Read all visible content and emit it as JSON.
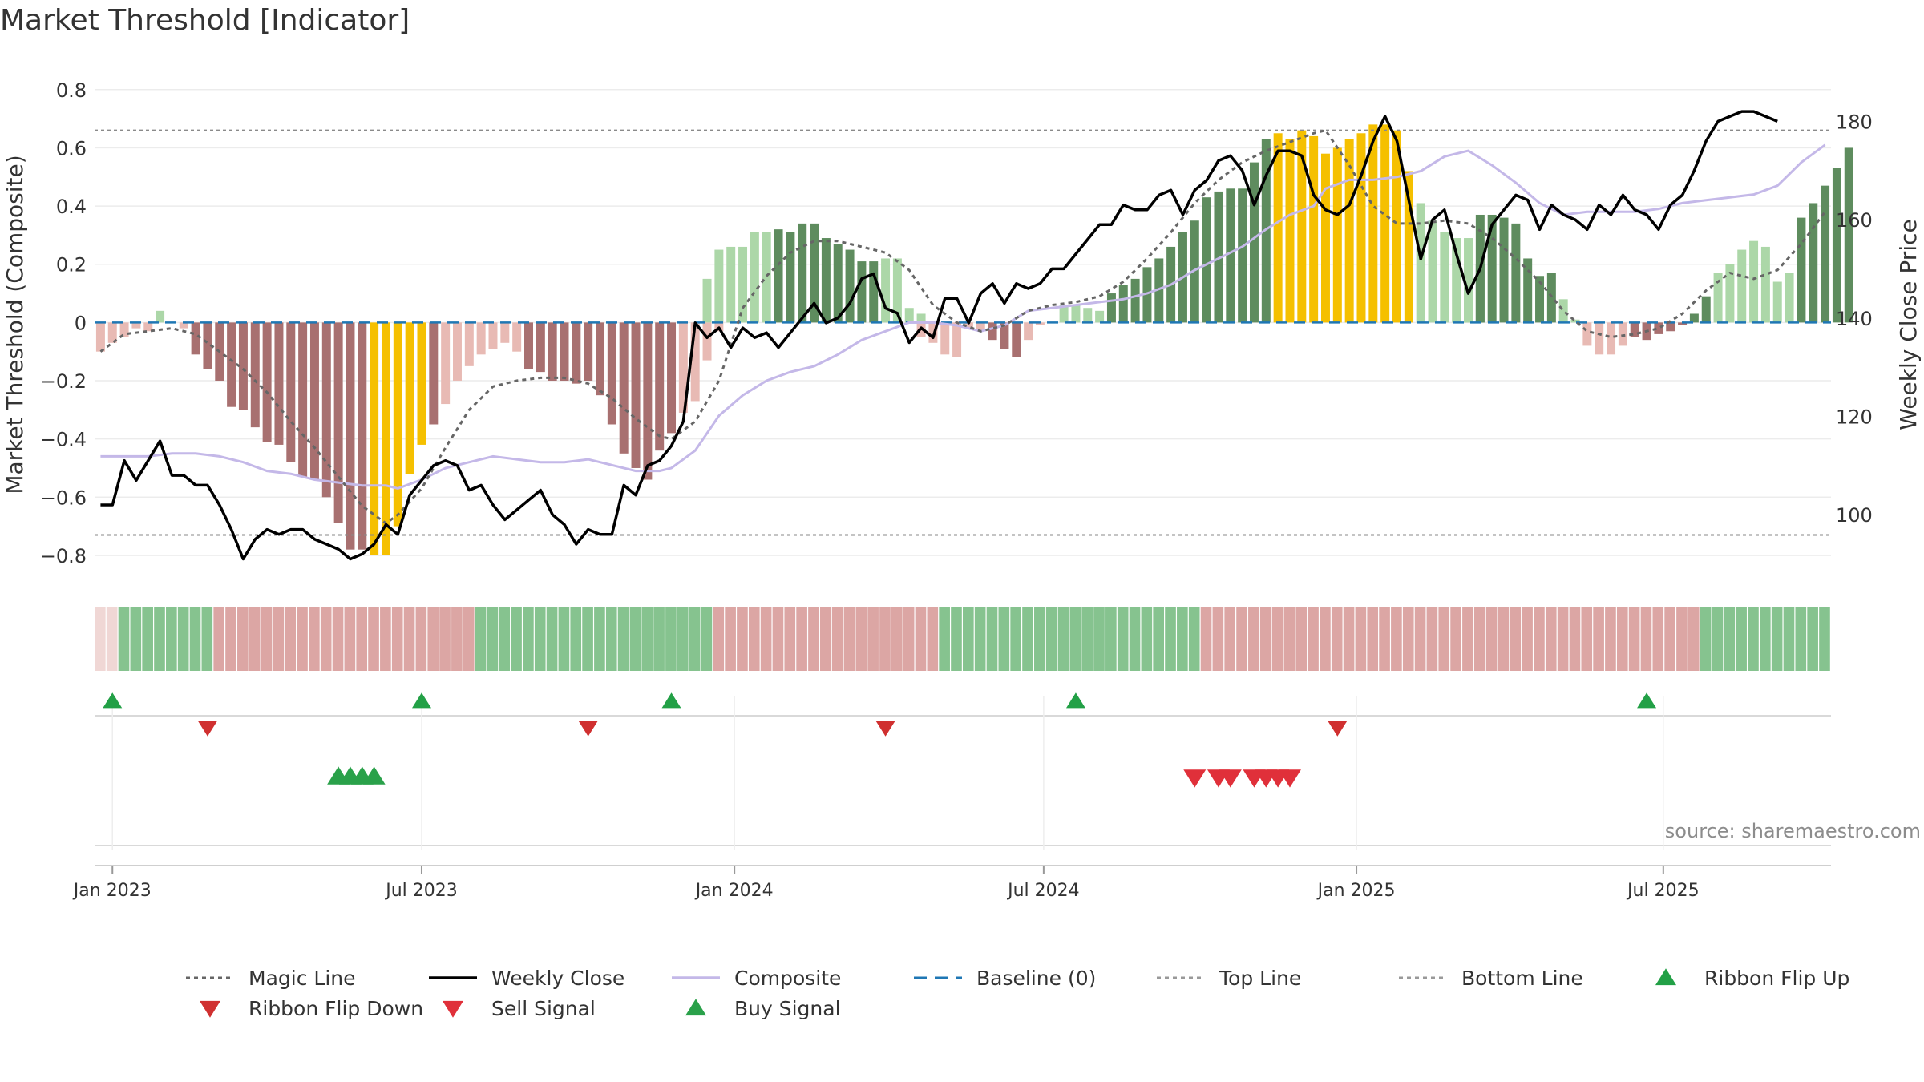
{
  "chart_data": {
    "type": "bar",
    "title": "Market Threshold [Indicator]",
    "ylabel_left": "Market Threshold (Composite)",
    "ylabel_right": "Weekly Close Price",
    "source": "source: sharemaestro.com",
    "ylim_left": [
      -0.88,
      0.86
    ],
    "yticks_left": [
      0.8,
      0.6,
      0.4,
      0.2,
      0,
      -0.2,
      -0.4,
      -0.6,
      -0.8
    ],
    "yticks_left_labels": [
      "0.8",
      "0.6",
      "0.4",
      "0.2",
      "0",
      "−0.2",
      "−0.4",
      "−0.6",
      "−0.8"
    ],
    "ylim_right": [
      87,
      190
    ],
    "yticks_right": [
      180,
      160,
      140,
      120,
      100
    ],
    "yticks_right_labels": [
      "180",
      "160",
      "140",
      "120",
      "100"
    ],
    "xticks": [
      {
        "label": "Jan 2023",
        "week": 1
      },
      {
        "label": "Jul 2023",
        "week": 27
      },
      {
        "label": "Jan 2024",
        "week": 53.3
      },
      {
        "label": "Jul 2024",
        "week": 79.3
      },
      {
        "label": "Jan 2025",
        "week": 105.6
      },
      {
        "label": "Jul 2025",
        "week": 131.4
      }
    ],
    "week_count": 146,
    "top_line": 0.66,
    "bottom_line": -0.73,
    "grid": true,
    "legend_position": "bottom",
    "colors": {
      "magic_line": "#666666",
      "weekly_close": "#000000",
      "composite": "#c4b8e8",
      "baseline": "#1f77b4",
      "threshold_lines": "#888888",
      "bar_pos_dark": "#5e8c5e",
      "bar_pos_light": "#acd7a8",
      "bar_neg_dark": "#a87070",
      "bar_neg_light": "#e8bab4",
      "bar_extreme": "#f5c000",
      "flip_up": "#22a046",
      "flip_down": "#d03030",
      "buy": "#2aa14a",
      "sell": "#e0303a"
    },
    "composite_bars": [
      {
        "start": 0,
        "values": [
          -0.1,
          -0.07,
          -0.05,
          -0.02,
          -0.03,
          0.04,
          0.0,
          -0.02,
          -0.11,
          -0.16,
          -0.2,
          -0.29,
          -0.3,
          -0.36,
          -0.41,
          -0.42,
          -0.48,
          -0.53,
          -0.54,
          -0.6,
          -0.69,
          -0.78,
          -0.78,
          -0.8,
          -0.8,
          -0.7,
          -0.52,
          -0.42,
          -0.35,
          -0.28,
          -0.2,
          -0.15,
          -0.11,
          -0.09,
          -0.07,
          -0.1,
          -0.16,
          -0.17,
          -0.2,
          -0.2,
          -0.21,
          -0.2,
          -0.25,
          -0.35,
          -0.45,
          -0.5,
          -0.54,
          -0.44,
          -0.38,
          -0.31,
          -0.27,
          -0.13,
          -0.03
        ]
      },
      {
        "start": 51,
        "values": [
          0.15,
          0.25,
          0.26,
          0.26,
          0.31,
          0.31,
          0.32,
          0.31,
          0.34,
          0.34,
          0.29,
          0.27,
          0.25,
          0.21,
          0.21,
          0.22,
          0.22,
          0.05,
          0.03
        ]
      },
      {
        "start": 69,
        "values": [
          -0.05,
          -0.07,
          -0.11,
          -0.12,
          -0.02,
          -0.03,
          -0.06,
          -0.09,
          -0.12,
          -0.06,
          -0.01,
          0.0,
          0.06,
          0.06,
          0.05,
          0.04,
          0.1,
          0.13,
          0.15,
          0.19,
          0.22,
          0.26,
          0.31,
          0.35,
          0.43,
          0.45,
          0.46,
          0.46,
          0.55,
          0.63,
          0.65,
          0.63,
          0.66,
          0.64,
          0.58,
          0.6,
          0.63,
          0.65,
          0.68,
          0.68,
          0.66,
          0.52,
          0.41,
          0.35,
          0.31,
          0.29,
          0.2,
          0.2
        ]
      },
      {
        "start": 115,
        "values": [
          0.29,
          0.37,
          0.37,
          0.36,
          0.34,
          0.22,
          0.16,
          0.17,
          0.08,
          0.01,
          -0.08,
          -0.11,
          -0.11,
          -0.08,
          -0.05,
          -0.06,
          -0.04,
          -0.03,
          -0.01,
          0.03,
          0.09,
          0.17,
          0.2,
          0.25,
          0.28,
          0.26,
          0.14,
          0.17,
          0.36,
          0.41,
          0.47,
          0.53,
          0.6
        ]
      }
    ],
    "bar_shades": [
      {
        "start": 0,
        "pattern": "LLLLLLLLDDDDDDDDDDDDDDDEEEEEDLLLLLLLDDDDDDDDDDDDDLLLLLLLLDDDDDDDDDLLLLLLLLLDDDLLLLLLLDDDDDDDDDDDDDDEEEEEEEEEEEELLLLLDDDDDDDLLLLLLDDDDDDDLLLLLLLDDDDDDDDDD"
      }
    ],
    "magic_line_points": [
      [
        0,
        -0.1
      ],
      [
        2,
        -0.04
      ],
      [
        4,
        -0.03
      ],
      [
        6,
        -0.02
      ],
      [
        8,
        -0.04
      ],
      [
        10,
        -0.1
      ],
      [
        12,
        -0.16
      ],
      [
        14,
        -0.24
      ],
      [
        16,
        -0.34
      ],
      [
        18,
        -0.43
      ],
      [
        20,
        -0.53
      ],
      [
        22,
        -0.63
      ],
      [
        24,
        -0.69
      ],
      [
        25,
        -0.66
      ],
      [
        27,
        -0.57
      ],
      [
        29,
        -0.43
      ],
      [
        31,
        -0.3
      ],
      [
        33,
        -0.22
      ],
      [
        35,
        -0.2
      ],
      [
        37,
        -0.19
      ],
      [
        39,
        -0.19
      ],
      [
        41,
        -0.21
      ],
      [
        43,
        -0.26
      ],
      [
        45,
        -0.33
      ],
      [
        47,
        -0.39
      ],
      [
        48,
        -0.4
      ],
      [
        50,
        -0.34
      ],
      [
        52,
        -0.2
      ],
      [
        54,
        0.05
      ],
      [
        56,
        0.16
      ],
      [
        58,
        0.24
      ],
      [
        60,
        0.28
      ],
      [
        62,
        0.28
      ],
      [
        64,
        0.26
      ],
      [
        66,
        0.24
      ],
      [
        68,
        0.18
      ],
      [
        70,
        0.06
      ],
      [
        72,
        0.0
      ],
      [
        74,
        -0.03
      ],
      [
        76,
        -0.01
      ],
      [
        78,
        0.04
      ],
      [
        80,
        0.06
      ],
      [
        82,
        0.07
      ],
      [
        84,
        0.09
      ],
      [
        86,
        0.14
      ],
      [
        88,
        0.22
      ],
      [
        90,
        0.31
      ],
      [
        92,
        0.41
      ],
      [
        94,
        0.49
      ],
      [
        96,
        0.55
      ],
      [
        98,
        0.59
      ],
      [
        100,
        0.62
      ],
      [
        102,
        0.65
      ],
      [
        103,
        0.66
      ],
      [
        105,
        0.54
      ],
      [
        107,
        0.4
      ],
      [
        109,
        0.34
      ],
      [
        111,
        0.34
      ],
      [
        113,
        0.35
      ],
      [
        115,
        0.34
      ],
      [
        117,
        0.29
      ],
      [
        119,
        0.22
      ],
      [
        121,
        0.14
      ],
      [
        123,
        0.04
      ],
      [
        125,
        -0.03
      ],
      [
        127,
        -0.05
      ],
      [
        129,
        -0.04
      ],
      [
        131,
        -0.02
      ],
      [
        133,
        0.03
      ],
      [
        135,
        0.11
      ],
      [
        137,
        0.17
      ],
      [
        139,
        0.15
      ],
      [
        141,
        0.18
      ],
      [
        143,
        0.27
      ],
      [
        145,
        0.38
      ]
    ],
    "composite_line_points": [
      [
        0,
        -0.46
      ],
      [
        2,
        -0.46
      ],
      [
        4,
        -0.46
      ],
      [
        6,
        -0.45
      ],
      [
        8,
        -0.45
      ],
      [
        10,
        -0.46
      ],
      [
        12,
        -0.48
      ],
      [
        14,
        -0.51
      ],
      [
        16,
        -0.52
      ],
      [
        18,
        -0.54
      ],
      [
        20,
        -0.55
      ],
      [
        22,
        -0.56
      ],
      [
        24,
        -0.56
      ],
      [
        25,
        -0.57
      ],
      [
        27,
        -0.54
      ],
      [
        29,
        -0.5
      ],
      [
        31,
        -0.48
      ],
      [
        33,
        -0.46
      ],
      [
        35,
        -0.47
      ],
      [
        37,
        -0.48
      ],
      [
        39,
        -0.48
      ],
      [
        41,
        -0.47
      ],
      [
        43,
        -0.49
      ],
      [
        45,
        -0.51
      ],
      [
        47,
        -0.51
      ],
      [
        48,
        -0.5
      ],
      [
        50,
        -0.44
      ],
      [
        52,
        -0.32
      ],
      [
        54,
        -0.25
      ],
      [
        56,
        -0.2
      ],
      [
        58,
        -0.17
      ],
      [
        60,
        -0.15
      ],
      [
        62,
        -0.11
      ],
      [
        64,
        -0.06
      ],
      [
        66,
        -0.03
      ],
      [
        68,
        0.0
      ],
      [
        70,
        0.0
      ],
      [
        72,
        -0.01
      ],
      [
        74,
        -0.03
      ],
      [
        76,
        -0.01
      ],
      [
        78,
        0.04
      ],
      [
        80,
        0.05
      ],
      [
        82,
        0.06
      ],
      [
        84,
        0.07
      ],
      [
        86,
        0.08
      ],
      [
        88,
        0.1
      ],
      [
        90,
        0.13
      ],
      [
        92,
        0.18
      ],
      [
        94,
        0.22
      ],
      [
        96,
        0.26
      ],
      [
        98,
        0.32
      ],
      [
        100,
        0.37
      ],
      [
        102,
        0.4
      ],
      [
        103,
        0.46
      ],
      [
        105,
        0.49
      ],
      [
        107,
        0.49
      ],
      [
        109,
        0.5
      ],
      [
        111,
        0.52
      ],
      [
        113,
        0.57
      ],
      [
        115,
        0.59
      ],
      [
        117,
        0.54
      ],
      [
        119,
        0.48
      ],
      [
        121,
        0.41
      ],
      [
        123,
        0.37
      ],
      [
        125,
        0.38
      ],
      [
        127,
        0.38
      ],
      [
        129,
        0.38
      ],
      [
        131,
        0.39
      ],
      [
        133,
        0.41
      ],
      [
        135,
        0.42
      ],
      [
        137,
        0.43
      ],
      [
        139,
        0.44
      ],
      [
        141,
        0.47
      ],
      [
        143,
        0.55
      ],
      [
        145,
        0.61
      ]
    ],
    "weekly_close_points": [
      [
        0,
        102
      ],
      [
        1,
        102
      ],
      [
        2,
        111
      ],
      [
        3,
        107
      ],
      [
        4,
        111
      ],
      [
        5,
        115
      ],
      [
        6,
        108
      ],
      [
        7,
        108
      ],
      [
        8,
        106
      ],
      [
        9,
        106
      ],
      [
        10,
        102
      ],
      [
        11,
        97
      ],
      [
        12,
        91
      ],
      [
        13,
        95
      ],
      [
        14,
        97
      ],
      [
        15,
        96
      ],
      [
        16,
        97
      ],
      [
        17,
        97
      ],
      [
        18,
        95
      ],
      [
        19,
        94
      ],
      [
        20,
        93
      ],
      [
        21,
        91
      ],
      [
        22,
        92
      ],
      [
        23,
        94
      ],
      [
        24,
        98
      ],
      [
        25,
        96
      ],
      [
        26,
        104
      ],
      [
        27,
        107
      ],
      [
        28,
        110
      ],
      [
        29,
        111
      ],
      [
        30,
        110
      ],
      [
        31,
        105
      ],
      [
        32,
        106
      ],
      [
        33,
        102
      ],
      [
        34,
        99
      ],
      [
        35,
        101
      ],
      [
        36,
        103
      ],
      [
        37,
        105
      ],
      [
        38,
        100
      ],
      [
        39,
        98
      ],
      [
        40,
        94
      ],
      [
        41,
        97
      ],
      [
        42,
        96
      ],
      [
        43,
        96
      ],
      [
        44,
        106
      ],
      [
        45,
        104
      ],
      [
        46,
        110
      ],
      [
        47,
        111
      ],
      [
        48,
        114
      ],
      [
        49,
        119
      ],
      [
        50,
        139
      ],
      [
        51,
        136
      ],
      [
        52,
        138
      ],
      [
        53,
        134
      ],
      [
        54,
        138
      ],
      [
        55,
        136
      ],
      [
        56,
        137
      ],
      [
        57,
        134
      ],
      [
        58,
        137
      ],
      [
        59,
        140
      ],
      [
        60,
        143
      ],
      [
        61,
        139
      ],
      [
        62,
        140
      ],
      [
        63,
        143
      ],
      [
        64,
        148
      ],
      [
        65,
        149
      ],
      [
        66,
        142
      ],
      [
        67,
        141
      ],
      [
        68,
        135
      ],
      [
        69,
        138
      ],
      [
        70,
        136
      ],
      [
        71,
        144
      ],
      [
        72,
        144
      ],
      [
        73,
        139
      ],
      [
        74,
        145
      ],
      [
        75,
        147
      ],
      [
        76,
        143
      ],
      [
        77,
        147
      ],
      [
        78,
        146
      ],
      [
        79,
        147
      ],
      [
        80,
        150
      ],
      [
        81,
        150
      ],
      [
        82,
        153
      ],
      [
        83,
        156
      ],
      [
        84,
        159
      ],
      [
        85,
        159
      ],
      [
        86,
        163
      ],
      [
        87,
        162
      ],
      [
        88,
        162
      ],
      [
        89,
        165
      ],
      [
        90,
        166
      ],
      [
        91,
        161
      ],
      [
        92,
        166
      ],
      [
        93,
        168
      ],
      [
        94,
        172
      ],
      [
        95,
        173
      ],
      [
        96,
        170
      ],
      [
        97,
        163
      ],
      [
        98,
        169
      ],
      [
        99,
        174
      ],
      [
        100,
        174
      ],
      [
        101,
        173
      ],
      [
        102,
        165
      ],
      [
        103,
        162
      ],
      [
        104,
        161
      ],
      [
        105,
        163
      ],
      [
        106,
        169
      ],
      [
        107,
        176
      ],
      [
        108,
        181
      ],
      [
        109,
        176
      ],
      [
        110,
        164
      ],
      [
        111,
        152
      ],
      [
        112,
        160
      ],
      [
        113,
        162
      ],
      [
        114,
        153
      ],
      [
        115,
        145
      ],
      [
        116,
        150
      ],
      [
        117,
        159
      ],
      [
        118,
        162
      ],
      [
        119,
        165
      ],
      [
        120,
        164
      ],
      [
        121,
        158
      ],
      [
        122,
        163
      ],
      [
        123,
        161
      ],
      [
        124,
        160
      ],
      [
        125,
        158
      ],
      [
        126,
        163
      ],
      [
        127,
        161
      ],
      [
        128,
        165
      ],
      [
        129,
        162
      ],
      [
        130,
        161
      ],
      [
        131,
        158
      ],
      [
        132,
        163
      ],
      [
        133,
        165
      ],
      [
        134,
        170
      ],
      [
        135,
        176
      ],
      [
        136,
        180
      ],
      [
        137,
        181
      ],
      [
        138,
        182
      ],
      [
        139,
        182
      ],
      [
        140,
        181
      ],
      [
        141,
        180
      ]
    ],
    "ribbon_pattern": "RRGGGGGGGGPPPPPPPPPPPPPPPPPPPPPPGGGGGGGGGGGGGGGGGGGGPPPPPPPPPPPPPPPPPPPGGGGGGGGGGGGGGGGGGGGGGPPPPPPPPPPPPPPPPPPPPPPPPPPPPPPPPPPPPPPPPPPGGGGGGGGGGGGG",
    "ribbon_flip_up_weeks": [
      1,
      27,
      48,
      82,
      130
    ],
    "ribbon_flip_down_weeks": [
      9,
      41,
      66,
      104
    ],
    "buy_signal_weeks": [
      20,
      21,
      22,
      23
    ],
    "sell_signal_weeks": [
      92,
      94,
      95,
      97,
      98,
      99,
      100
    ],
    "legend": [
      {
        "label": "Magic Line",
        "kind": "dotted",
        "color": "#666666"
      },
      {
        "label": "Weekly Close",
        "kind": "solid",
        "color": "#000000"
      },
      {
        "label": "Composite",
        "kind": "solid",
        "color": "#c4b8e8"
      },
      {
        "label": "Baseline (0)",
        "kind": "dashed",
        "color": "#1f77b4"
      },
      {
        "label": "Top Line",
        "kind": "dotted",
        "color": "#999999"
      },
      {
        "label": "Bottom Line",
        "kind": "dotted",
        "color": "#999999"
      },
      {
        "label": "Ribbon Flip Up",
        "kind": "tri-up",
        "color": "#22a046"
      },
      {
        "label": "Ribbon Flip Down",
        "kind": "tri-down",
        "color": "#d03030"
      },
      {
        "label": "Sell Signal",
        "kind": "tri-down",
        "color": "#e0303a"
      },
      {
        "label": "Buy Signal",
        "kind": "tri-up",
        "color": "#2aa14a"
      }
    ]
  }
}
